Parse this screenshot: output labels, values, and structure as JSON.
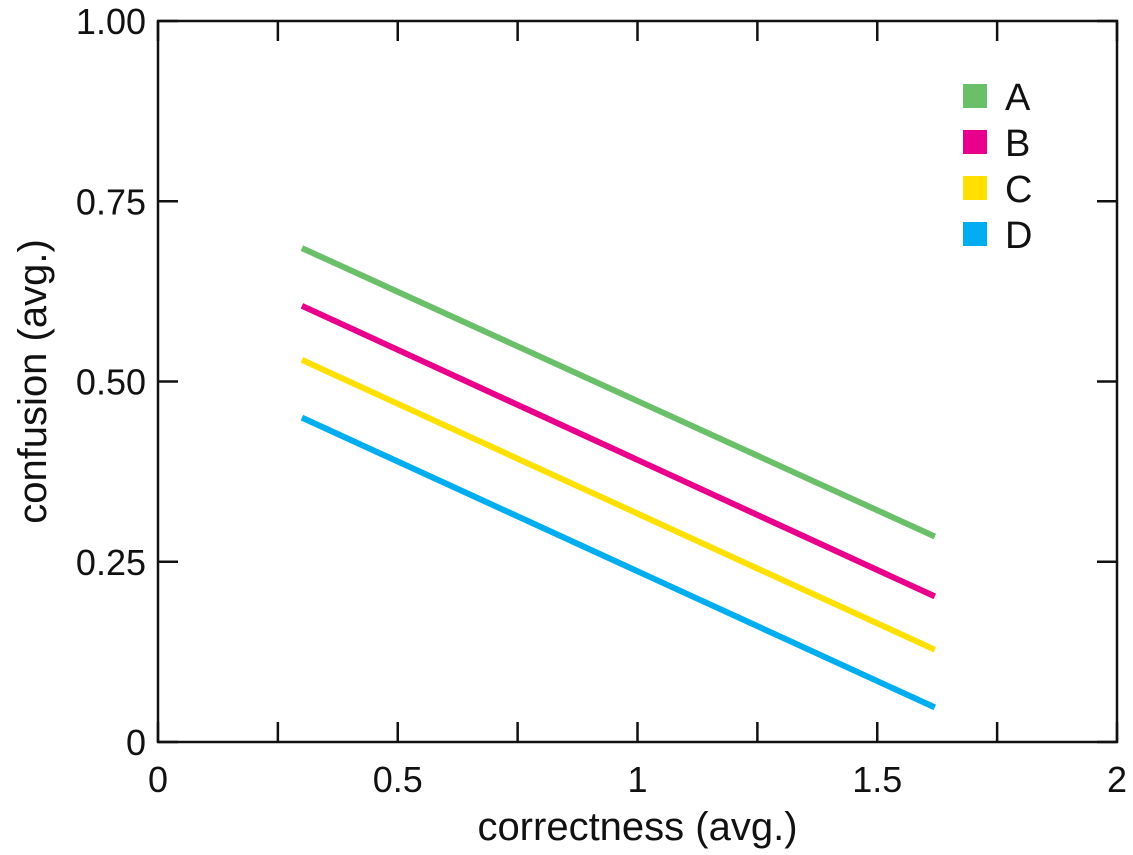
{
  "chart_data": {
    "type": "line",
    "title": "",
    "xlabel": "correctness (avg.)",
    "ylabel": "confusion (avg.)",
    "xlim": [
      0,
      2
    ],
    "ylim": [
      0,
      1
    ],
    "xticks": [
      {
        "value": 0,
        "label": "0"
      },
      {
        "value": 0.5,
        "label": "0.5"
      },
      {
        "value": 1,
        "label": "1"
      },
      {
        "value": 1.5,
        "label": "1.5"
      },
      {
        "value": 2,
        "label": "2"
      }
    ],
    "xminor": [
      0.25,
      0.75,
      1.25,
      1.75
    ],
    "yticks": [
      {
        "value": 0,
        "label": "0"
      },
      {
        "value": 0.25,
        "label": "0.25"
      },
      {
        "value": 0.5,
        "label": "0.50"
      },
      {
        "value": 0.75,
        "label": "0.75"
      },
      {
        "value": 1,
        "label": "1.00"
      }
    ],
    "grid": false,
    "legend_position": "top-right",
    "series": [
      {
        "name": "A",
        "color": "#6abf69",
        "points": [
          {
            "x": 0.3,
            "y": 0.685
          },
          {
            "x": 1.62,
            "y": 0.285
          }
        ]
      },
      {
        "name": "B",
        "color": "#e8008c",
        "points": [
          {
            "x": 0.3,
            "y": 0.605
          },
          {
            "x": 1.62,
            "y": 0.202
          }
        ]
      },
      {
        "name": "C",
        "color": "#ffe000",
        "points": [
          {
            "x": 0.3,
            "y": 0.53
          },
          {
            "x": 1.62,
            "y": 0.128
          }
        ]
      },
      {
        "name": "D",
        "color": "#00aeef",
        "points": [
          {
            "x": 0.3,
            "y": 0.45
          },
          {
            "x": 1.62,
            "y": 0.048
          }
        ]
      }
    ]
  }
}
